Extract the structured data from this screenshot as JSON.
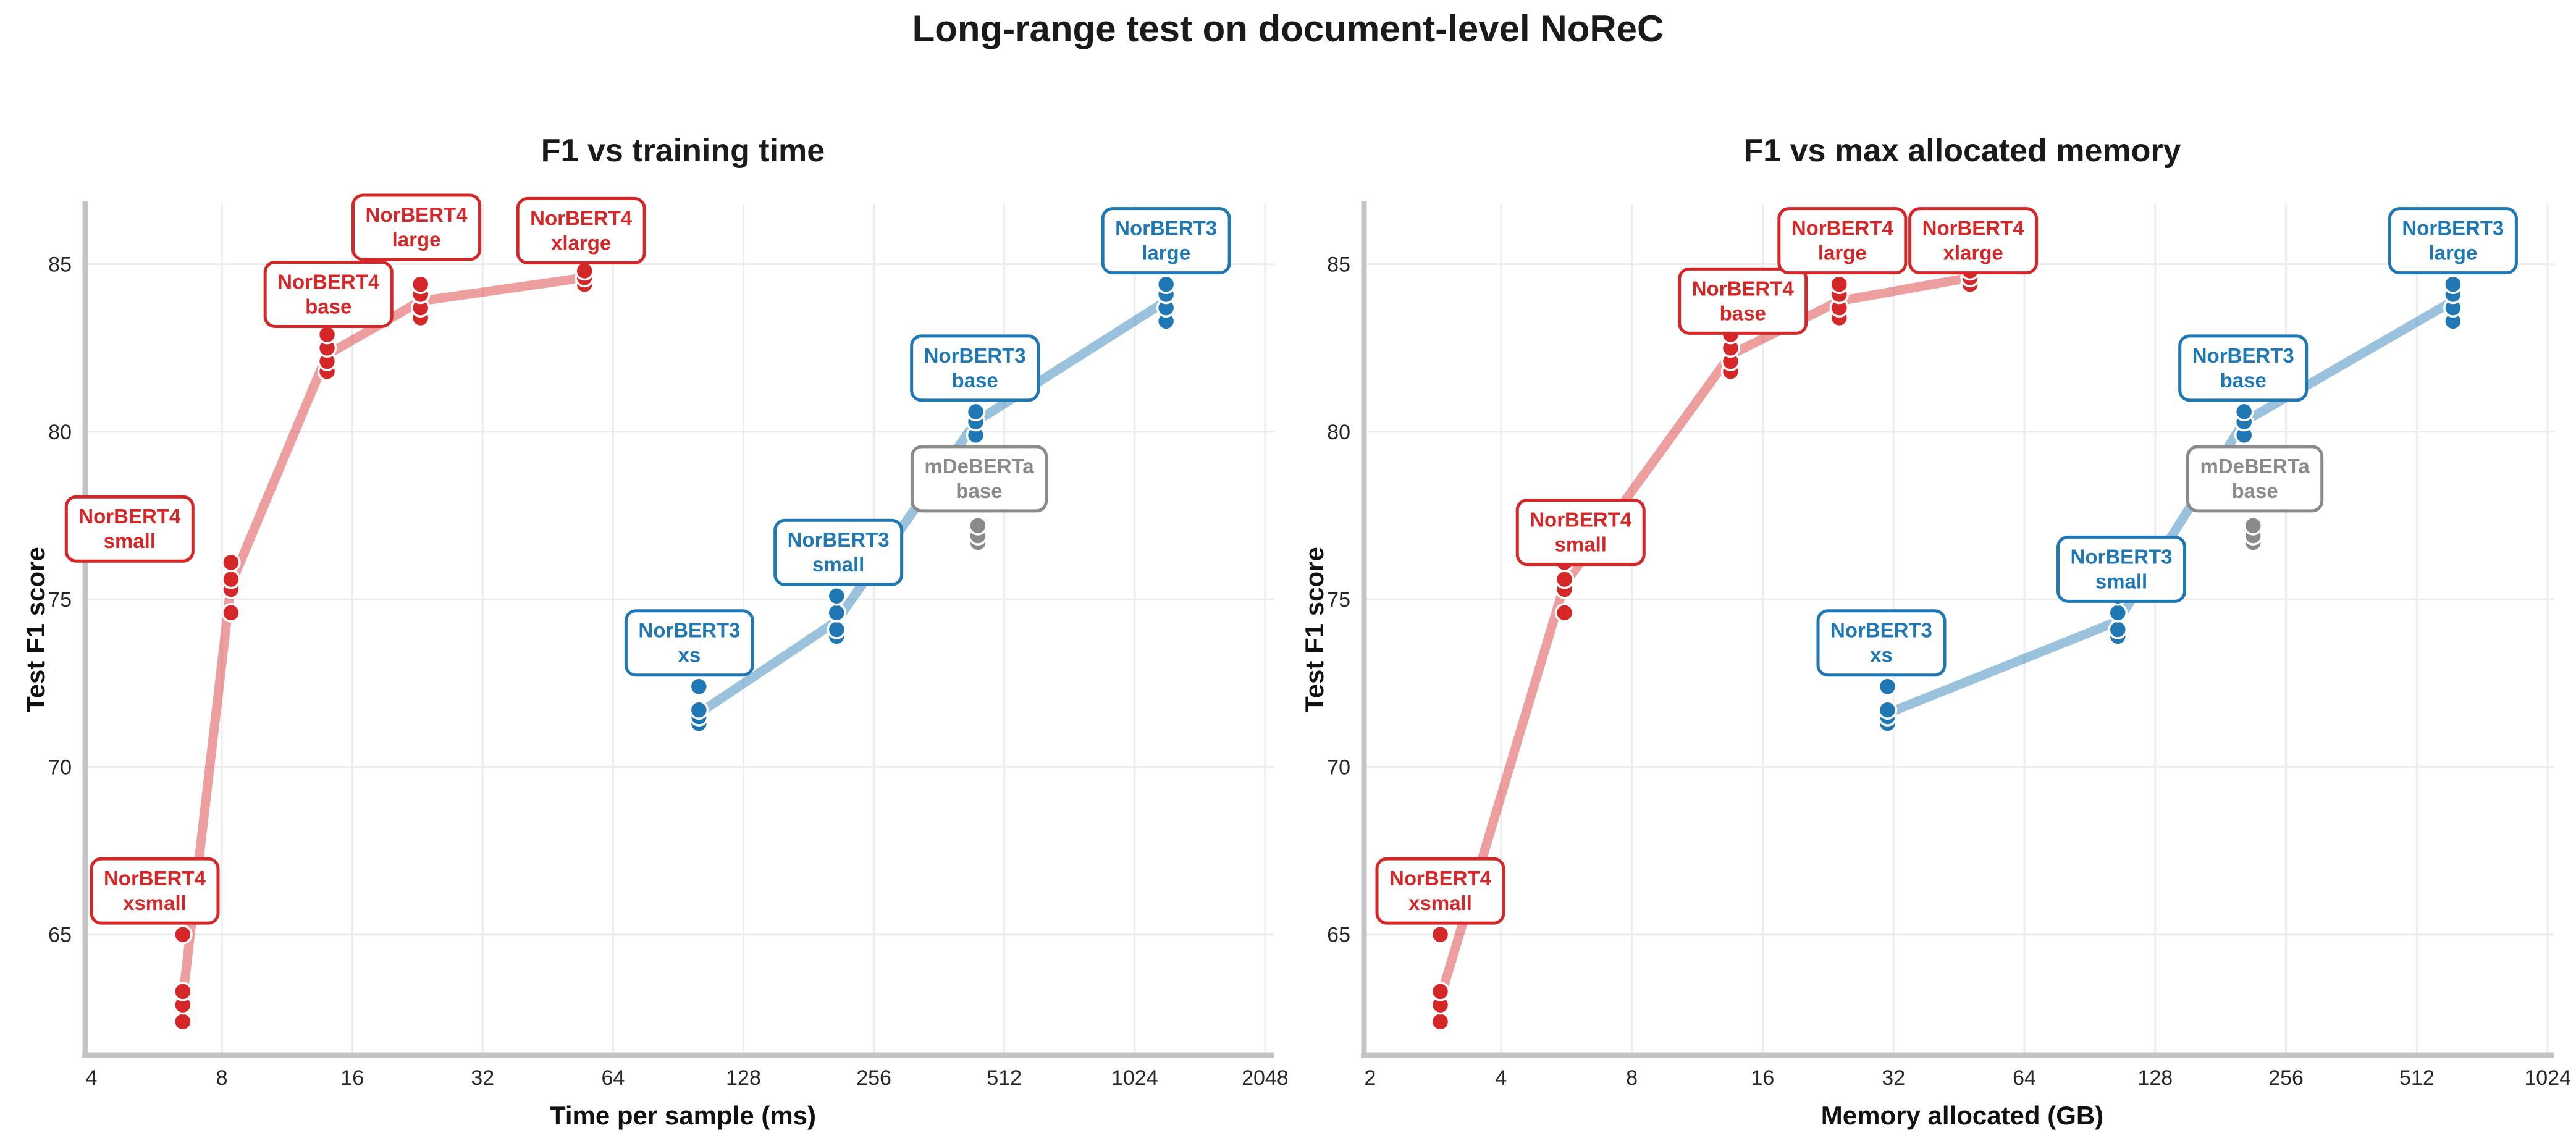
{
  "figure": {
    "title": "Long-range test on document-level NoReC",
    "colors": {
      "norbert4": "#d62728",
      "norbert3": "#1f77b4",
      "mdeberta": "#8a8a8a",
      "grid": "#ececec",
      "spine": "#c4c4c4",
      "tick_label": "#262626",
      "background": "#ffffff"
    }
  },
  "chart_data": [
    {
      "type": "scatter",
      "panel": "left",
      "title": "F1 vs training time",
      "xlabel": "Time per sample (ms)",
      "ylabel": "Test F1 score",
      "xscale": "log2",
      "xticks": [
        4,
        8,
        16,
        32,
        64,
        128,
        256,
        512,
        1024,
        2048
      ],
      "yticks": [
        65,
        70,
        75,
        80,
        85
      ],
      "xlim": [
        4,
        2200
      ],
      "ylim": [
        61.4,
        86.8
      ],
      "grid": true,
      "legend": "annotation-boxes",
      "series": [
        {
          "family": "NorBERT4",
          "color_key": "norbert4",
          "draw_line": true,
          "models": [
            {
              "label_line1": "NorBERT4",
              "label_line2": "xsmall",
              "x": 6.5,
              "f1": [
                62.4,
                62.9,
                63.3,
                65.0
              ],
              "median": 63.1,
              "label_x": 5.6,
              "label_y": 66.3
            },
            {
              "label_line1": "NorBERT4",
              "label_line2": "small",
              "x": 8.4,
              "f1": [
                74.6,
                75.3,
                75.6,
                76.1
              ],
              "median": 75.45,
              "label_x": 4.9,
              "label_y": 77.1
            },
            {
              "label_line1": "NorBERT4",
              "label_line2": "base",
              "x": 14.0,
              "f1": [
                81.8,
                82.1,
                82.5,
                82.9
              ],
              "median": 82.3,
              "label_x": 14.1,
              "label_y": 84.1
            },
            {
              "label_line1": "NorBERT4",
              "label_line2": "large",
              "x": 23.0,
              "f1": [
                83.4,
                83.7,
                84.1,
                84.4
              ],
              "median": 83.9,
              "label_x": 22.5,
              "label_y": 86.1
            },
            {
              "label_line1": "NorBERT4",
              "label_line2": "xlarge",
              "x": 55.0,
              "f1": [
                84.4,
                84.6,
                84.8
              ],
              "median": 84.6,
              "label_x": 54.0,
              "label_y": 86.0
            }
          ]
        },
        {
          "family": "NorBERT3",
          "color_key": "norbert3",
          "draw_line": true,
          "models": [
            {
              "label_line1": "NorBERT3",
              "label_line2": "xs",
              "x": 101,
              "f1": [
                71.3,
                71.5,
                71.7,
                72.4
              ],
              "median": 71.6,
              "label_x": 96,
              "label_y": 73.7
            },
            {
              "label_line1": "NorBERT3",
              "label_line2": "small",
              "x": 210,
              "f1": [
                73.9,
                74.1,
                74.6,
                75.1
              ],
              "median": 74.35,
              "label_x": 212,
              "label_y": 76.4
            },
            {
              "label_line1": "NorBERT3",
              "label_line2": "base",
              "x": 440,
              "f1": [
                79.9,
                80.3,
                80.6
              ],
              "median": 80.3,
              "label_x": 438,
              "label_y": 81.9
            },
            {
              "label_line1": "NorBERT3",
              "label_line2": "large",
              "x": 1210,
              "f1": [
                83.3,
                83.7,
                84.1,
                84.4
              ],
              "median": 83.9,
              "label_x": 1210,
              "label_y": 85.7
            }
          ]
        },
        {
          "family": "mDeBERTa",
          "color_key": "mdeberta",
          "draw_line": false,
          "models": [
            {
              "label_line1": "mDeBERTa",
              "label_line2": "base",
              "x": 445,
              "f1": [
                76.7,
                76.9,
                77.2
              ],
              "median": 76.9,
              "label_x": 448,
              "label_y": 78.6
            }
          ]
        }
      ]
    },
    {
      "type": "scatter",
      "panel": "right",
      "title": "F1 vs max allocated memory",
      "xlabel": "Memory allocated (GB)",
      "ylabel": "Test F1 score",
      "xscale": "log2",
      "xticks": [
        2,
        4,
        8,
        16,
        32,
        64,
        128,
        256,
        512,
        1024
      ],
      "yticks": [
        65,
        70,
        75,
        80,
        85
      ],
      "xlim": [
        2,
        1100
      ],
      "ylim": [
        61.4,
        86.8
      ],
      "grid": true,
      "legend": "annotation-boxes",
      "series": [
        {
          "family": "NorBERT4",
          "color_key": "norbert4",
          "draw_line": true,
          "models": [
            {
              "label_line1": "NorBERT4",
              "label_line2": "xsmall",
              "x": 2.9,
              "f1": [
                62.4,
                62.9,
                63.3,
                65.0
              ],
              "median": 63.1,
              "label_x": 2.9,
              "label_y": 66.3
            },
            {
              "label_line1": "NorBERT4",
              "label_line2": "small",
              "x": 5.6,
              "f1": [
                74.6,
                75.3,
                75.6,
                76.1
              ],
              "median": 75.45,
              "label_x": 6.1,
              "label_y": 77.0
            },
            {
              "label_line1": "NorBERT4",
              "label_line2": "base",
              "x": 13.5,
              "f1": [
                81.8,
                82.1,
                82.5,
                82.9
              ],
              "median": 82.3,
              "label_x": 14.4,
              "label_y": 83.9
            },
            {
              "label_line1": "NorBERT4",
              "label_line2": "large",
              "x": 24.0,
              "f1": [
                83.4,
                83.7,
                84.1,
                84.4
              ],
              "median": 83.9,
              "label_x": 24.4,
              "label_y": 85.7
            },
            {
              "label_line1": "NorBERT4",
              "label_line2": "xlarge",
              "x": 48.0,
              "f1": [
                84.4,
                84.6,
                84.8
              ],
              "median": 84.6,
              "label_x": 48.8,
              "label_y": 85.7
            }
          ]
        },
        {
          "family": "NorBERT3",
          "color_key": "norbert3",
          "draw_line": true,
          "models": [
            {
              "label_line1": "NorBERT3",
              "label_line2": "xs",
              "x": 31,
              "f1": [
                71.3,
                71.5,
                71.7,
                72.4
              ],
              "median": 71.6,
              "label_x": 30,
              "label_y": 73.7
            },
            {
              "label_line1": "NorBERT3",
              "label_line2": "small",
              "x": 105,
              "f1": [
                73.9,
                74.1,
                74.6,
                75.1
              ],
              "median": 74.35,
              "label_x": 107,
              "label_y": 75.9
            },
            {
              "label_line1": "NorBERT3",
              "label_line2": "base",
              "x": 205,
              "f1": [
                79.9,
                80.3,
                80.6
              ],
              "median": 80.3,
              "label_x": 204,
              "label_y": 81.9
            },
            {
              "label_line1": "NorBERT3",
              "label_line2": "large",
              "x": 620,
              "f1": [
                83.3,
                83.7,
                84.1,
                84.4
              ],
              "median": 83.9,
              "label_x": 620,
              "label_y": 85.7
            }
          ]
        },
        {
          "family": "mDeBERTa",
          "color_key": "mdeberta",
          "draw_line": false,
          "models": [
            {
              "label_line1": "mDeBERTa",
              "label_line2": "base",
              "x": 215,
              "f1": [
                76.7,
                76.9,
                77.2
              ],
              "median": 76.9,
              "label_x": 217,
              "label_y": 78.6
            }
          ]
        }
      ]
    }
  ]
}
